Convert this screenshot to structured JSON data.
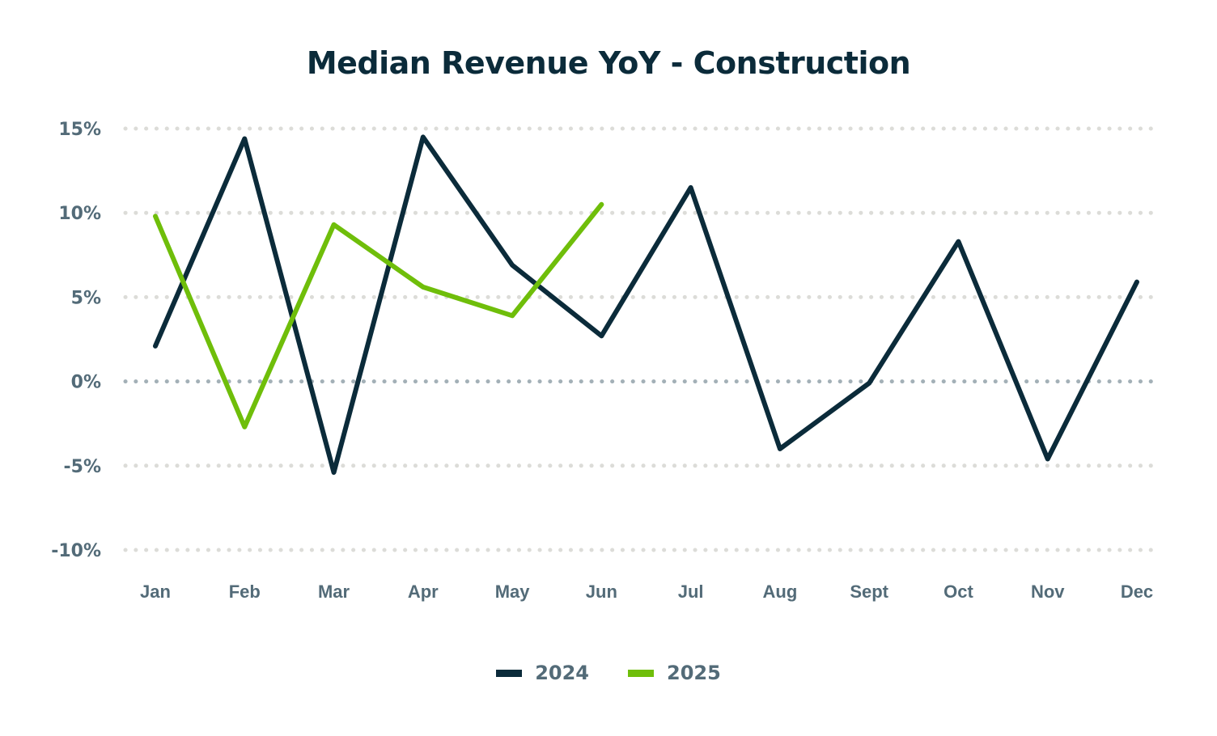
{
  "chart_data": {
    "type": "line",
    "title": "Median Revenue YoY - Construction",
    "xlabel": "",
    "ylabel": "",
    "categories": [
      "Jan",
      "Feb",
      "Mar",
      "Apr",
      "May",
      "Jun",
      "Jul",
      "Aug",
      "Sept",
      "Oct",
      "Nov",
      "Dec"
    ],
    "ylim": [
      -10,
      15
    ],
    "yticks": [
      15,
      10,
      5,
      0,
      -5,
      -10
    ],
    "ytick_labels": [
      "15%",
      "10%",
      "5%",
      "0%",
      "-5%",
      "-10%"
    ],
    "grid": "horizontal dotted",
    "legend_position": "bottom-center",
    "series": [
      {
        "name": "2024",
        "color": "#0b2b3a",
        "values": [
          2.1,
          14.4,
          -5.4,
          14.5,
          6.9,
          2.7,
          11.5,
          -4.0,
          -0.1,
          8.3,
          -4.6,
          5.9
        ]
      },
      {
        "name": "2025",
        "color": "#6fbe0a",
        "values": [
          9.8,
          -2.7,
          9.3,
          5.6,
          3.9,
          10.5,
          null,
          null,
          null,
          null,
          null,
          null
        ]
      }
    ]
  },
  "colors": {
    "grid": "#dcdcd8",
    "zero_line": "#a3b0b7",
    "tick_text": "#536b78",
    "title": "#0b2b3a"
  }
}
